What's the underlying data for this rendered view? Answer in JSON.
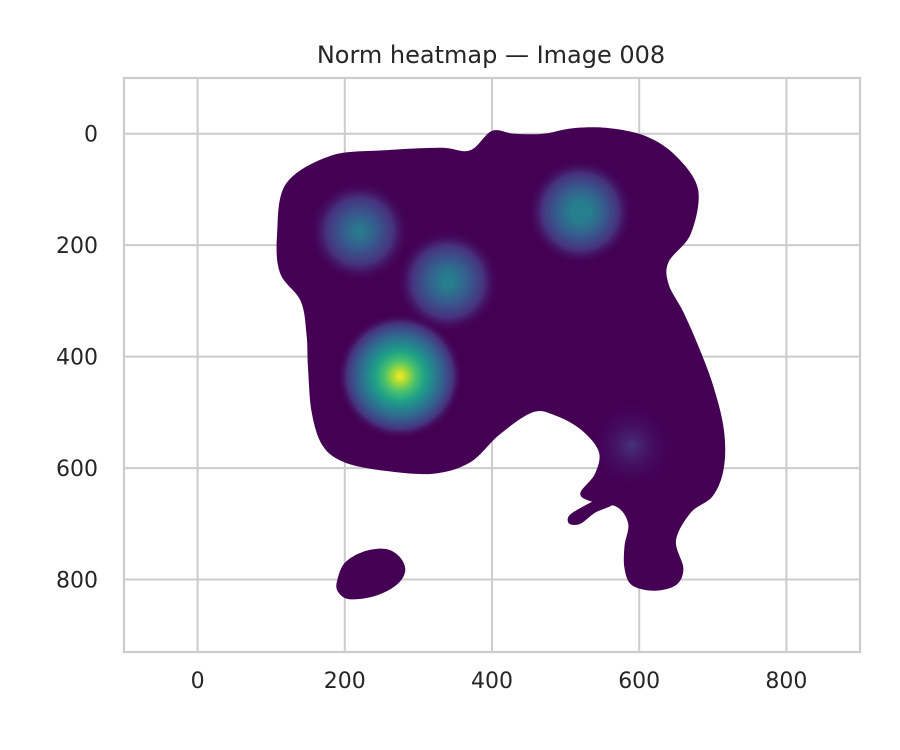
{
  "chart_data": {
    "type": "heatmap",
    "title": "Norm heatmap — Image 008",
    "xlabel": "",
    "ylabel": "",
    "xlim": [
      -100,
      900
    ],
    "ylim": [
      930,
      -100
    ],
    "y_axis_inverted": true,
    "xticks": [
      0,
      200,
      400,
      600,
      800
    ],
    "yticks": [
      0,
      200,
      400,
      600,
      800
    ],
    "xtick_labels": [
      "0",
      "200",
      "400",
      "600",
      "800"
    ],
    "ytick_labels": [
      "0",
      "200",
      "400",
      "600",
      "800"
    ],
    "grid": true,
    "colormap": "viridis",
    "background_color": "#ffffff",
    "grid_color": "#cccccc",
    "base_fill_color": "#440154",
    "hotspots": [
      {
        "x": 275,
        "y": 435,
        "intensity": 1.0
      },
      {
        "x": 520,
        "y": 140,
        "intensity": 0.55
      },
      {
        "x": 220,
        "y": 175,
        "intensity": 0.45
      },
      {
        "x": 340,
        "y": 265,
        "intensity": 0.5
      },
      {
        "x": 590,
        "y": 560,
        "intensity": 0.15
      }
    ],
    "regions": [
      {
        "name": "main-blob",
        "outline": [
          [
            120,
            90
          ],
          [
            180,
            40
          ],
          [
            250,
            30
          ],
          [
            330,
            25
          ],
          [
            370,
            30
          ],
          [
            400,
            -5
          ],
          [
            430,
            0
          ],
          [
            470,
            0
          ],
          [
            510,
            -10
          ],
          [
            560,
            -10
          ],
          [
            610,
            5
          ],
          [
            650,
            40
          ],
          [
            680,
            100
          ],
          [
            670,
            180
          ],
          [
            640,
            230
          ],
          [
            640,
            270
          ],
          [
            660,
            320
          ],
          [
            680,
            380
          ],
          [
            700,
            450
          ],
          [
            715,
            530
          ],
          [
            715,
            600
          ],
          [
            700,
            650
          ],
          [
            670,
            680
          ],
          [
            650,
            730
          ],
          [
            660,
            780
          ],
          [
            650,
            810
          ],
          [
            620,
            820
          ],
          [
            590,
            810
          ],
          [
            580,
            780
          ],
          [
            580,
            740
          ],
          [
            585,
            700
          ],
          [
            570,
            670
          ],
          [
            535,
            660
          ],
          [
            520,
            645
          ],
          [
            540,
            610
          ],
          [
            545,
            570
          ],
          [
            520,
            530
          ],
          [
            485,
            505
          ],
          [
            455,
            500
          ],
          [
            410,
            540
          ],
          [
            370,
            590
          ],
          [
            320,
            610
          ],
          [
            255,
            605
          ],
          [
            200,
            590
          ],
          [
            170,
            560
          ],
          [
            155,
            500
          ],
          [
            150,
            420
          ],
          [
            148,
            360
          ],
          [
            140,
            300
          ],
          [
            112,
            250
          ],
          [
            108,
            180
          ]
        ]
      },
      {
        "name": "hook",
        "outline": [
          [
            545,
            655
          ],
          [
            560,
            650
          ],
          [
            565,
            665
          ],
          [
            540,
            680
          ],
          [
            520,
            700
          ],
          [
            505,
            700
          ],
          [
            505,
            685
          ],
          [
            525,
            668
          ]
        ]
      },
      {
        "name": "small-blob",
        "outline": [
          [
            190,
            800
          ],
          [
            200,
            770
          ],
          [
            225,
            750
          ],
          [
            255,
            745
          ],
          [
            275,
            760
          ],
          [
            282,
            785
          ],
          [
            270,
            810
          ],
          [
            240,
            830
          ],
          [
            205,
            835
          ],
          [
            190,
            820
          ]
        ]
      }
    ]
  }
}
